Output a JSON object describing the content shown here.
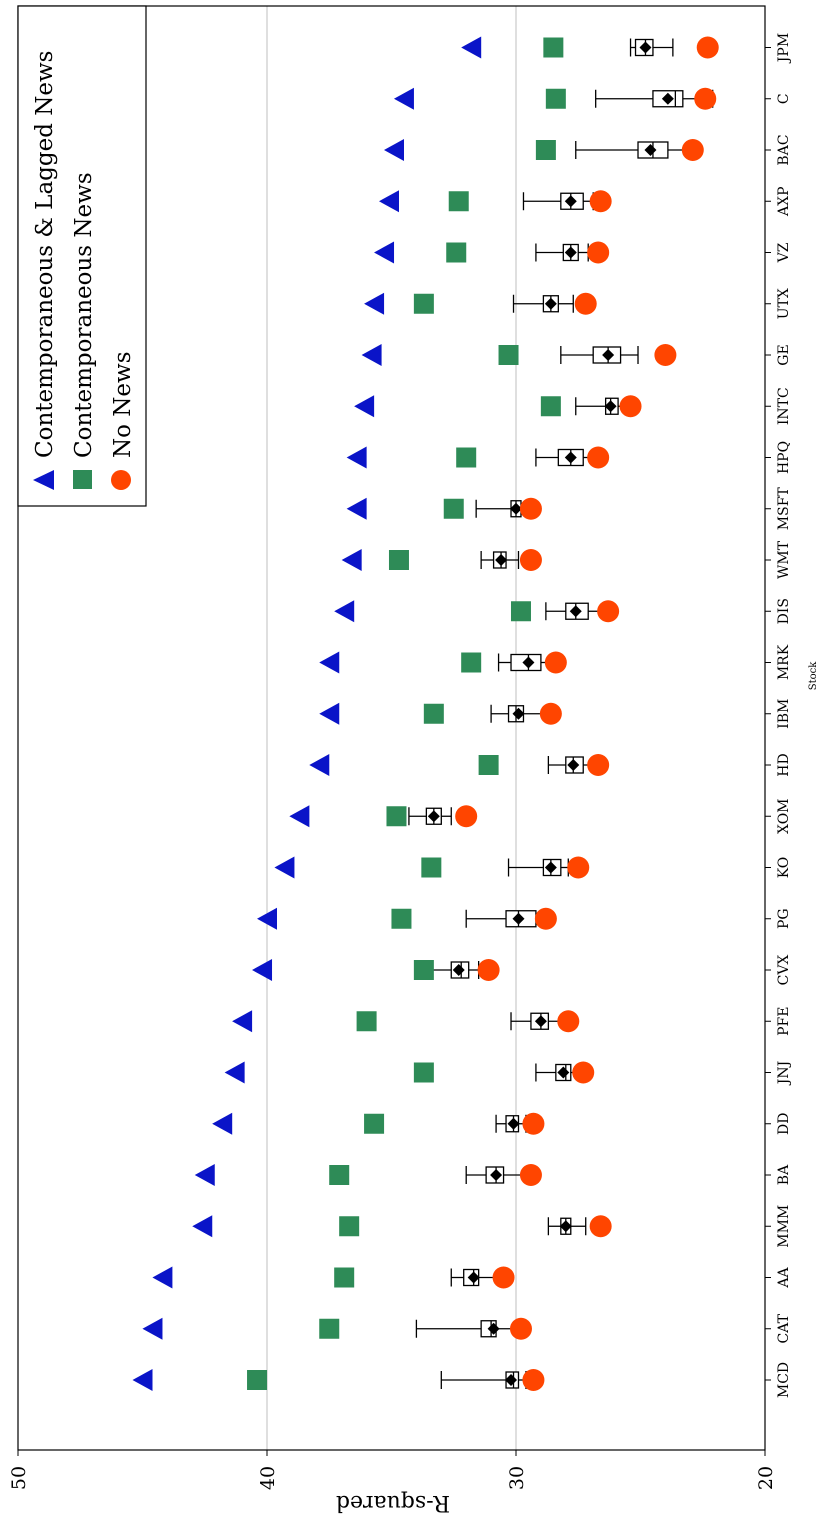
{
  "chart_data": {
    "type": "scatter",
    "orientation": "rotated",
    "xlabel": "Stock",
    "ylabel": "R-squared",
    "ylim": [
      20,
      50
    ],
    "yticks": [
      20,
      30,
      40,
      50
    ],
    "grid_lines": [
      30,
      40
    ],
    "legend_position": "top-right",
    "categories": [
      "MCD",
      "CAT",
      "AA",
      "MMM",
      "BA",
      "DD",
      "JNJ",
      "PFE",
      "CVX",
      "PG",
      "KO",
      "XOM",
      "HD",
      "IBM",
      "MRK",
      "DIS",
      "WMT",
      "MSFT",
      "HPQ",
      "INTC",
      "GE",
      "UTX",
      "VZ",
      "AXP",
      "BAC",
      "C",
      "JPM"
    ],
    "series": [
      {
        "name": "Contemporaneous & Lagged News",
        "marker": "triangle",
        "color": "#0a14c8",
        "values": [
          45.0,
          44.6,
          44.2,
          42.6,
          42.5,
          41.8,
          41.3,
          41.0,
          40.2,
          40.0,
          39.3,
          38.7,
          37.9,
          37.5,
          37.5,
          36.9,
          36.6,
          36.4,
          36.4,
          36.1,
          35.8,
          35.7,
          35.3,
          35.1,
          34.9,
          34.5,
          31.8
        ]
      },
      {
        "name": "Contemporaneous News",
        "marker": "square",
        "color": "#2e8b57",
        "values": [
          40.4,
          37.5,
          36.9,
          36.7,
          37.1,
          35.7,
          33.7,
          36.0,
          33.7,
          34.6,
          33.4,
          34.8,
          31.1,
          33.3,
          31.8,
          29.8,
          34.7,
          32.5,
          32.0,
          28.6,
          30.3,
          33.7,
          32.4,
          32.3,
          28.8,
          28.4,
          28.5
        ]
      },
      {
        "name": "No News",
        "marker": "circle",
        "color": "#ff4500",
        "values": [
          29.3,
          29.8,
          30.5,
          26.6,
          29.4,
          29.3,
          27.3,
          27.9,
          31.1,
          28.8,
          27.5,
          32.0,
          26.7,
          28.6,
          28.4,
          26.3,
          29.4,
          29.4,
          26.7,
          25.4,
          24.0,
          27.2,
          26.7,
          26.6,
          22.9,
          22.4,
          22.3
        ]
      }
    ],
    "boxplots": [
      {
        "whisker_low": 29.6,
        "q1": 29.9,
        "median": 30.1,
        "q3": 30.4,
        "whisker_high": 33.0,
        "mean": 30.2
      },
      {
        "whisker_low": 29.8,
        "q1": 30.8,
        "median": 31.0,
        "q3": 31.4,
        "whisker_high": 34.0,
        "mean": 30.9
      },
      {
        "whisker_low": 30.6,
        "q1": 31.5,
        "median": 31.7,
        "q3": 32.1,
        "whisker_high": 32.6,
        "mean": 31.7
      },
      {
        "whisker_low": 27.2,
        "q1": 27.8,
        "median": 28.0,
        "q3": 28.2,
        "whisker_high": 28.7,
        "mean": 28.0
      },
      {
        "whisker_low": 29.6,
        "q1": 30.5,
        "median": 30.8,
        "q3": 31.2,
        "whisker_high": 32.0,
        "mean": 30.8
      },
      {
        "whisker_low": 29.6,
        "q1": 29.9,
        "median": 30.1,
        "q3": 30.4,
        "whisker_high": 30.8,
        "mean": 30.1
      },
      {
        "whisker_low": 27.4,
        "q1": 27.8,
        "median": 28.0,
        "q3": 28.4,
        "whisker_high": 29.2,
        "mean": 28.1
      },
      {
        "whisker_low": 28.0,
        "q1": 28.7,
        "median": 29.0,
        "q3": 29.4,
        "whisker_high": 30.2,
        "mean": 29.0
      },
      {
        "whisker_low": 31.5,
        "q1": 31.9,
        "median": 32.2,
        "q3": 32.6,
        "whisker_high": 33.4,
        "mean": 32.3
      },
      {
        "whisker_low": 28.8,
        "q1": 29.2,
        "median": 29.9,
        "q3": 30.4,
        "whisker_high": 32.0,
        "mean": 29.9
      },
      {
        "whisker_low": 27.9,
        "q1": 28.2,
        "median": 28.6,
        "q3": 28.9,
        "whisker_high": 30.3,
        "mean": 28.6
      },
      {
        "whisker_low": 32.6,
        "q1": 33.0,
        "median": 33.3,
        "q3": 33.6,
        "whisker_high": 34.3,
        "mean": 33.3
      },
      {
        "whisker_low": 26.6,
        "q1": 27.3,
        "median": 27.7,
        "q3": 28.0,
        "whisker_high": 28.7,
        "mean": 27.7
      },
      {
        "whisker_low": 28.8,
        "q1": 29.7,
        "median": 30.0,
        "q3": 30.3,
        "whisker_high": 31.0,
        "mean": 29.9
      },
      {
        "whisker_low": 28.5,
        "q1": 29.0,
        "median": 29.5,
        "q3": 30.2,
        "whisker_high": 30.7,
        "mean": 29.5
      },
      {
        "whisker_low": 26.5,
        "q1": 27.1,
        "median": 27.6,
        "q3": 28.0,
        "whisker_high": 28.8,
        "mean": 27.6
      },
      {
        "whisker_low": 29.9,
        "q1": 30.4,
        "median": 30.6,
        "q3": 30.9,
        "whisker_high": 31.4,
        "mean": 30.6
      },
      {
        "whisker_low": 29.4,
        "q1": 29.8,
        "median": 30.0,
        "q3": 30.2,
        "whisker_high": 31.6,
        "mean": 30.0
      },
      {
        "whisker_low": 26.9,
        "q1": 27.3,
        "median": 27.8,
        "q3": 28.3,
        "whisker_high": 29.2,
        "mean": 27.8
      },
      {
        "whisker_low": 25.6,
        "q1": 25.9,
        "median": 26.2,
        "q3": 26.4,
        "whisker_high": 27.6,
        "mean": 26.2
      },
      {
        "whisker_low": 25.1,
        "q1": 25.8,
        "median": 26.3,
        "q3": 26.9,
        "whisker_high": 28.2,
        "mean": 26.3
      },
      {
        "whisker_low": 27.7,
        "q1": 28.3,
        "median": 28.6,
        "q3": 28.9,
        "whisker_high": 30.1,
        "mean": 28.6
      },
      {
        "whisker_low": 27.1,
        "q1": 27.5,
        "median": 27.8,
        "q3": 28.1,
        "whisker_high": 29.2,
        "mean": 27.8
      },
      {
        "whisker_low": 26.9,
        "q1": 27.3,
        "median": 27.8,
        "q3": 28.2,
        "whisker_high": 29.7,
        "mean": 27.8
      },
      {
        "whisker_low": 22.9,
        "q1": 23.9,
        "median": 24.5,
        "q3": 25.1,
        "whisker_high": 27.6,
        "mean": 24.6
      },
      {
        "whisker_low": 22.1,
        "q1": 23.3,
        "median": 23.6,
        "q3": 24.5,
        "whisker_high": 26.8,
        "mean": 23.9
      },
      {
        "whisker_low": 23.7,
        "q1": 24.5,
        "median": 24.8,
        "q3": 25.2,
        "whisker_high": 25.4,
        "mean": 24.8
      }
    ]
  }
}
